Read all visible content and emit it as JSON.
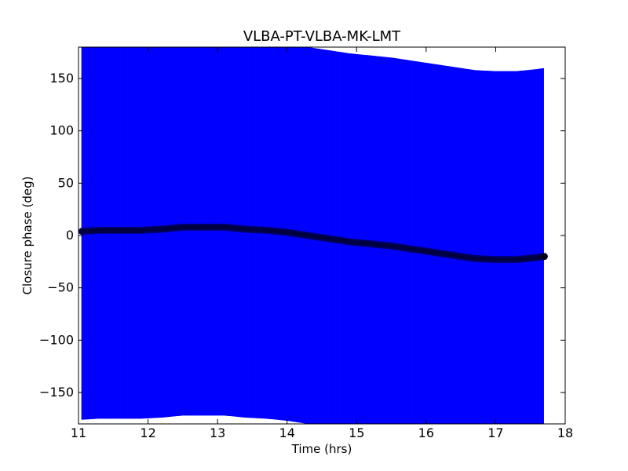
{
  "chart_data": {
    "type": "scatter",
    "title": "VLBA-PT-VLBA-MK-LMT",
    "xlabel": "Time (hrs)",
    "ylabel": "Closure phase (deg)",
    "xlim": [
      11,
      18
    ],
    "ylim": [
      -180,
      180
    ],
    "xticks": [
      11,
      12,
      13,
      14,
      15,
      16,
      17,
      18
    ],
    "yticks": [
      -150,
      -100,
      -50,
      0,
      50,
      100,
      150
    ],
    "xtick_labels": [
      "11",
      "12",
      "13",
      "14",
      "15",
      "16",
      "17",
      "18"
    ],
    "ytick_labels": [
      "−150",
      "−100",
      "−50",
      "0",
      "50",
      "100",
      "150"
    ],
    "grid": false,
    "colors": {
      "errorbar": "#0000ff",
      "point": "#000000",
      "point_edge": "#000080"
    },
    "series": [
      {
        "errorbar_halfwidth": 180,
        "x": [
          11.05,
          11.3,
          11.6,
          11.9,
          12.2,
          12.5,
          12.8,
          13.1,
          13.4,
          13.7,
          14.0,
          14.3,
          14.6,
          14.9,
          15.2,
          15.5,
          15.8,
          16.1,
          16.4,
          16.7,
          17.0,
          17.3,
          17.6,
          17.7
        ],
        "y": [
          4,
          5,
          5,
          5,
          6,
          8,
          8,
          8,
          6,
          5,
          3,
          0,
          -3,
          -6,
          -8,
          -10,
          -13,
          -16,
          -19,
          -22,
          -23,
          -23,
          -21,
          -20
        ]
      }
    ]
  }
}
